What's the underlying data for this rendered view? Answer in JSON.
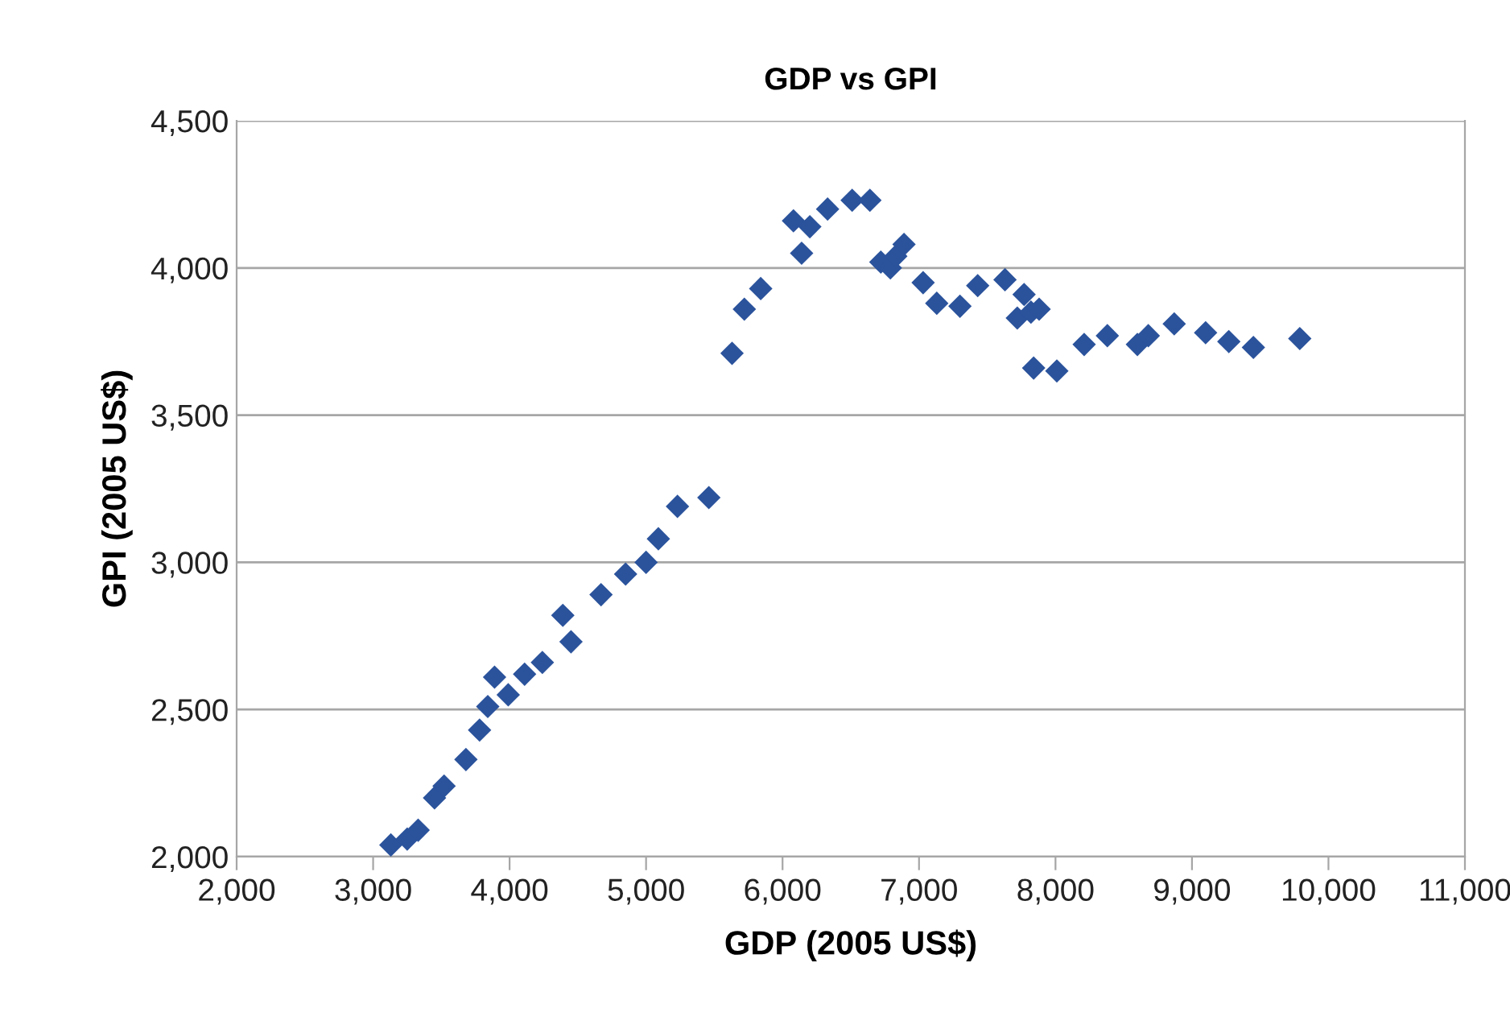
{
  "chart_data": {
    "type": "scatter",
    "title": "GDP vs GPI",
    "xlabel": "GDP (2005 US$)",
    "ylabel": "GPI (2005 US$)",
    "x": [
      3130,
      3250,
      3330,
      3450,
      3520,
      3680,
      3780,
      3840,
      3890,
      3990,
      4110,
      4240,
      4390,
      4450,
      4670,
      4850,
      5000,
      5090,
      5230,
      5460,
      5630,
      5720,
      5840,
      6080,
      6140,
      6200,
      6330,
      6510,
      6640,
      6720,
      6790,
      6830,
      6890,
      7030,
      7130,
      7300,
      7430,
      7630,
      7770,
      7720,
      7820,
      7880,
      7840,
      8010,
      8210,
      8380,
      8600,
      8680,
      8870,
      9100,
      9270,
      9450,
      9790
    ],
    "series": [
      {
        "color": "#2b539c",
        "values": [
          2040,
          2060,
          2090,
          2200,
          2240,
          2330,
          2430,
          2510,
          2610,
          2550,
          2620,
          2660,
          2820,
          2730,
          2890,
          2960,
          3000,
          3080,
          3190,
          3220,
          3710,
          3860,
          3930,
          4160,
          4050,
          4140,
          4200,
          4230,
          4230,
          4020,
          4000,
          4040,
          4080,
          3950,
          3880,
          3870,
          3940,
          3960,
          3910,
          3830,
          3850,
          3860,
          3660,
          3650,
          3740,
          3770,
          3740,
          3770,
          3810,
          3780,
          3750,
          3730,
          3760
        ]
      }
    ],
    "xlim": [
      2000,
      11000
    ],
    "xticks": [
      {
        "value": 2000,
        "label": "2,000"
      },
      {
        "value": 3000,
        "label": "3,000"
      },
      {
        "value": 4000,
        "label": "4,000"
      },
      {
        "value": 5000,
        "label": "5,000"
      },
      {
        "value": 6000,
        "label": "6,000"
      },
      {
        "value": 7000,
        "label": "7,000"
      },
      {
        "value": 8000,
        "label": "8,000"
      },
      {
        "value": 9000,
        "label": "9,000"
      },
      {
        "value": 10000,
        "label": "10,000"
      },
      {
        "value": 11000,
        "label": "11,000"
      }
    ],
    "ylim": [
      2000,
      4500
    ],
    "yticks": [
      {
        "value": 2000,
        "label": "2,000"
      },
      {
        "value": 2500,
        "label": "2,500"
      },
      {
        "value": 3000,
        "label": "3,000"
      },
      {
        "value": 3500,
        "label": "3,500"
      },
      {
        "value": 4000,
        "label": "4,000"
      },
      {
        "value": 4500,
        "label": "4,500"
      }
    ],
    "grid": "y",
    "marker": "diamond",
    "legend": false
  }
}
